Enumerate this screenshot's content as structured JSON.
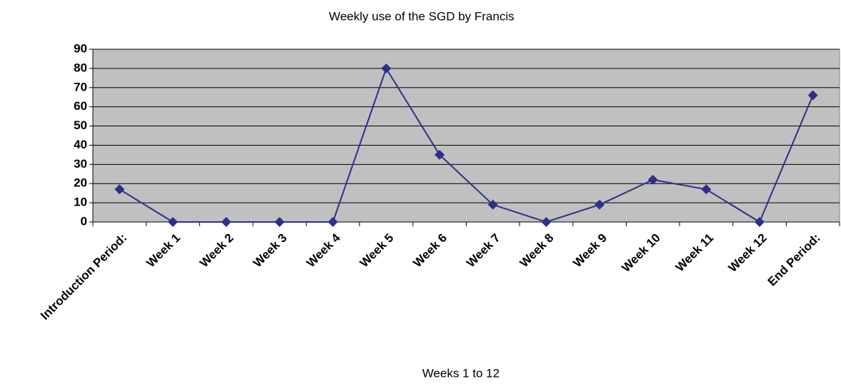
{
  "chart_data": {
    "type": "line",
    "title": "Weekly use of the SGD by Francis",
    "xlabel": "Weeks 1 to 12",
    "categories": [
      "Introduction Period:",
      "Week 1",
      "Week 2",
      "Week 3",
      "Week 4",
      "Week 5",
      "Week 6",
      "Week 7",
      "Week 8",
      "Week 9",
      "Week 10",
      "Week 11",
      "Week 12",
      "End Period:"
    ],
    "series": [
      {
        "name": "Weekly use",
        "color": "#2e3087",
        "values": [
          17,
          0,
          0,
          0,
          0,
          80,
          35,
          9,
          0,
          9,
          22,
          17,
          0,
          66
        ]
      }
    ],
    "ylim": [
      0,
      90
    ],
    "yticks": [
      0,
      10,
      20,
      30,
      40,
      50,
      60,
      70,
      80,
      90
    ],
    "grid": true
  }
}
